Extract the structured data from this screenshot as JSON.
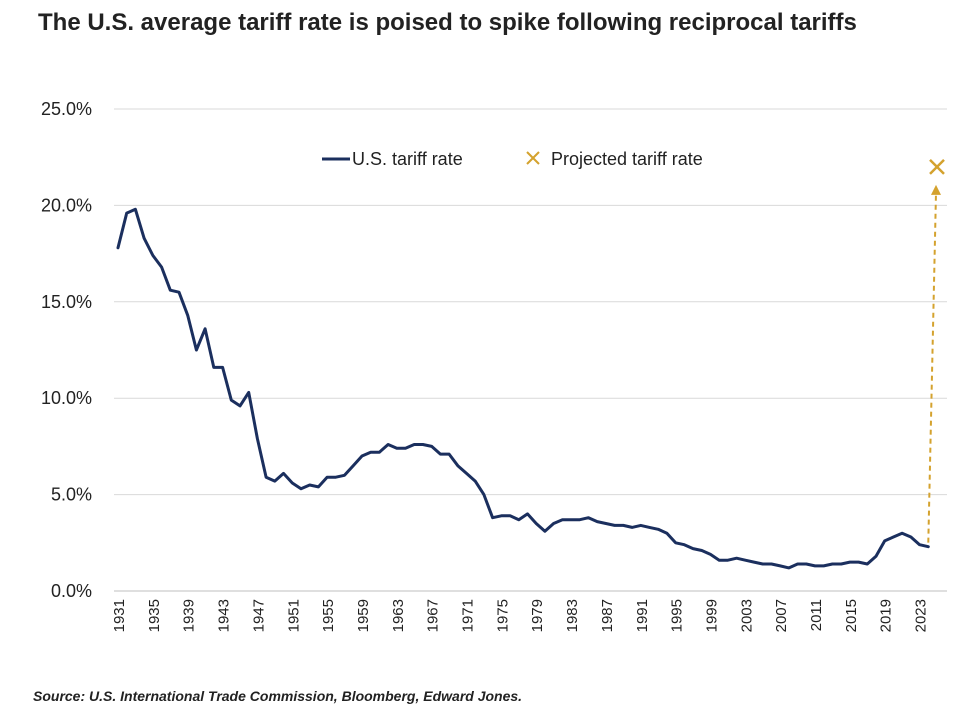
{
  "title": "The U.S. average tariff rate is poised to spike following reciprocal tariffs",
  "source": "Source: U.S. International Trade Commission, Bloomberg, Edward Jones.",
  "colors": {
    "series": "#1b2f5e",
    "projection": "#d4a22e",
    "grid": "#d9d9d9"
  },
  "chart_data": {
    "type": "line",
    "title": "The U.S. average tariff rate is poised to spike following reciprocal tariffs",
    "xlabel": "",
    "ylabel": "",
    "ylim": [
      0,
      25
    ],
    "yticks": [
      "0.0%",
      "5.0%",
      "10.0%",
      "15.0%",
      "20.0%",
      "25.0%"
    ],
    "xticks": [
      "1931",
      "1935",
      "1939",
      "1943",
      "1947",
      "1951",
      "1955",
      "1959",
      "1963",
      "1967",
      "1971",
      "1975",
      "1979",
      "1983",
      "1987",
      "1991",
      "1995",
      "1999",
      "2003",
      "2007",
      "2011",
      "2015",
      "2019",
      "2023"
    ],
    "grid": "horizontal",
    "legend_position": "top",
    "legend": [
      "U.S. tariff rate",
      "Projected tariff rate"
    ],
    "series": [
      {
        "name": "U.S. tariff rate",
        "x": [
          1931,
          1932,
          1933,
          1934,
          1935,
          1936,
          1937,
          1938,
          1939,
          1940,
          1941,
          1942,
          1943,
          1944,
          1945,
          1946,
          1947,
          1948,
          1949,
          1950,
          1951,
          1952,
          1953,
          1954,
          1955,
          1956,
          1957,
          1958,
          1959,
          1960,
          1961,
          1962,
          1963,
          1964,
          1965,
          1966,
          1967,
          1968,
          1969,
          1970,
          1971,
          1972,
          1973,
          1974,
          1975,
          1976,
          1977,
          1978,
          1979,
          1980,
          1981,
          1982,
          1983,
          1984,
          1985,
          1986,
          1987,
          1988,
          1989,
          1990,
          1991,
          1992,
          1993,
          1994,
          1995,
          1996,
          1997,
          1998,
          1999,
          2000,
          2001,
          2002,
          2003,
          2004,
          2005,
          2006,
          2007,
          2008,
          2009,
          2010,
          2011,
          2012,
          2013,
          2014,
          2015,
          2016,
          2017,
          2018,
          2019,
          2020,
          2021,
          2022,
          2023,
          2024
        ],
        "values": [
          17.8,
          19.6,
          19.8,
          18.3,
          17.4,
          16.8,
          15.6,
          15.5,
          14.3,
          12.5,
          13.6,
          11.6,
          11.6,
          9.9,
          9.6,
          10.3,
          7.9,
          5.9,
          5.7,
          6.1,
          5.6,
          5.3,
          5.5,
          5.4,
          5.9,
          5.9,
          6.0,
          6.5,
          7.0,
          7.2,
          7.2,
          7.6,
          7.4,
          7.4,
          7.6,
          7.6,
          7.5,
          7.1,
          7.1,
          6.5,
          6.1,
          5.7,
          5.0,
          3.8,
          3.9,
          3.9,
          3.7,
          4.0,
          3.5,
          3.1,
          3.5,
          3.7,
          3.7,
          3.7,
          3.8,
          3.6,
          3.5,
          3.4,
          3.4,
          3.3,
          3.4,
          3.3,
          3.2,
          3.0,
          2.5,
          2.4,
          2.2,
          2.1,
          1.9,
          1.6,
          1.6,
          1.7,
          1.6,
          1.5,
          1.4,
          1.4,
          1.3,
          1.2,
          1.4,
          1.4,
          1.3,
          1.3,
          1.4,
          1.4,
          1.5,
          1.5,
          1.4,
          1.8,
          2.6,
          2.8,
          3.0,
          2.8,
          2.4,
          2.3
        ]
      },
      {
        "name": "Projected tariff rate",
        "x": [
          2025
        ],
        "values": [
          22.0
        ]
      }
    ]
  }
}
